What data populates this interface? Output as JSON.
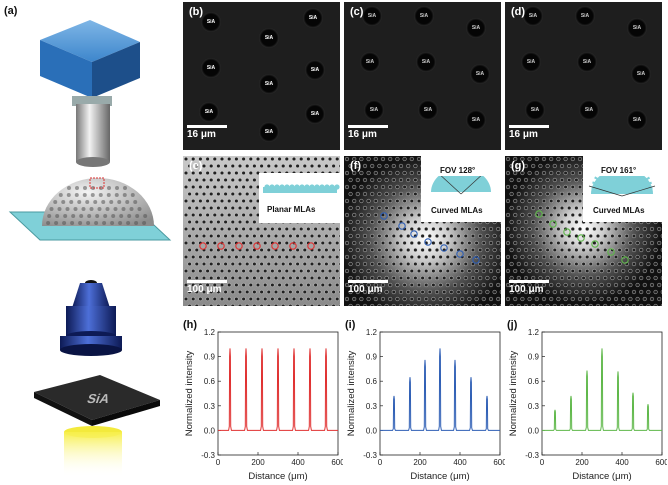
{
  "panels": {
    "a": "(a)",
    "b": "(b)",
    "c": "(c)",
    "d": "(d)",
    "e": "(e)",
    "f": "(f)",
    "g": "(g)",
    "h": "(h)",
    "i": "(i)",
    "j": "(j)"
  },
  "object_text": "SiA",
  "spot_text": "SiA",
  "scalebars": {
    "small": "16 μm",
    "large": "100 μm"
  },
  "labels": {
    "planar": "Planar MLAs",
    "curved": "Curved MLAs",
    "fov_f": "FOV 128°",
    "fov_g": "FOV 161°"
  },
  "colors": {
    "red": "#e03030",
    "blue": "#2f5fb5",
    "green": "#5fb84a"
  },
  "chart_data": [
    {
      "type": "line",
      "panel": "h",
      "xlabel": "Distance (μm)",
      "ylabel": "Normalized intensity",
      "xlim": [
        0,
        600
      ],
      "ylim": [
        -0.3,
        1.2
      ],
      "xticks": [
        0,
        200,
        400,
        600
      ],
      "yticks": [
        -0.3,
        0,
        0.3,
        0.6,
        0.9,
        1.2
      ],
      "series": [
        {
          "color": "#e03030",
          "peaks_x": [
            60,
            140,
            220,
            300,
            380,
            460,
            540
          ],
          "peaks_y": [
            1.0,
            1.0,
            1.0,
            1.0,
            1.0,
            1.0,
            1.0
          ]
        }
      ]
    },
    {
      "type": "line",
      "panel": "i",
      "xlabel": "Distance (μm)",
      "ylabel": "Normalized intensity",
      "xlim": [
        0,
        600
      ],
      "ylim": [
        -0.3,
        1.2
      ],
      "xticks": [
        0,
        200,
        400,
        600
      ],
      "yticks": [
        -0.3,
        0,
        0.3,
        0.6,
        0.9,
        1.2
      ],
      "series": [
        {
          "color": "#2f5fb5",
          "peaks_x": [
            70,
            150,
            225,
            300,
            375,
            455,
            535
          ],
          "peaks_y": [
            0.42,
            0.65,
            0.86,
            1.0,
            0.86,
            0.65,
            0.42
          ]
        }
      ]
    },
    {
      "type": "line",
      "panel": "j",
      "xlabel": "Distance (μm)",
      "ylabel": "Normalized intensity",
      "xlim": [
        0,
        600
      ],
      "ylim": [
        -0.3,
        1.2
      ],
      "xticks": [
        0,
        200,
        400,
        600
      ],
      "yticks": [
        -0.3,
        0,
        0.3,
        0.6,
        0.9,
        1.2
      ],
      "series": [
        {
          "color": "#5fb84a",
          "peaks_x": [
            65,
            145,
            225,
            300,
            380,
            455,
            530
          ],
          "peaks_y": [
            0.25,
            0.42,
            0.73,
            1.0,
            0.72,
            0.46,
            0.32
          ]
        }
      ]
    }
  ]
}
